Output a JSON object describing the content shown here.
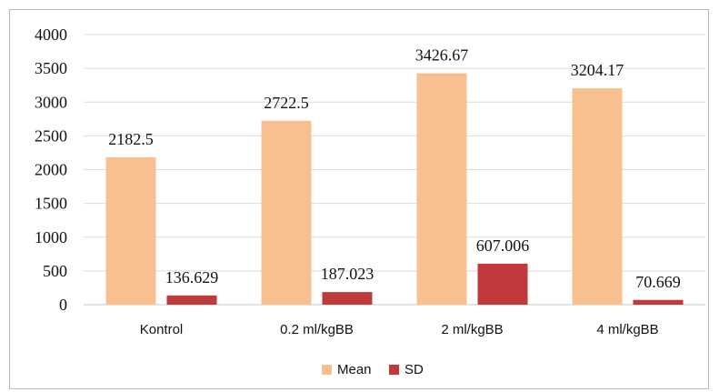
{
  "chart_data": {
    "type": "bar",
    "categories": [
      "Kontrol",
      "0.2 ml/kgBB",
      "2 ml/kgBB",
      "4 ml/kgBB"
    ],
    "series": [
      {
        "name": "Mean",
        "values": [
          2182.5,
          2722.5,
          3426.67,
          3204.17
        ],
        "labels": [
          "2182.5",
          "2722.5",
          "3426.67",
          "3204.17"
        ],
        "color": "#f9c08f"
      },
      {
        "name": "SD",
        "values": [
          136.629,
          187.023,
          607.006,
          70.669
        ],
        "labels": [
          "136.629",
          "187.023",
          "607.006",
          "70.669"
        ],
        "color": "#c0393b"
      }
    ],
    "yticks": [
      "0",
      "500",
      "1000",
      "1500",
      "2000",
      "2500",
      "3000",
      "3500",
      "4000"
    ],
    "ylim": [
      0,
      4000
    ],
    "grid": true,
    "legend_position": "bottom"
  }
}
